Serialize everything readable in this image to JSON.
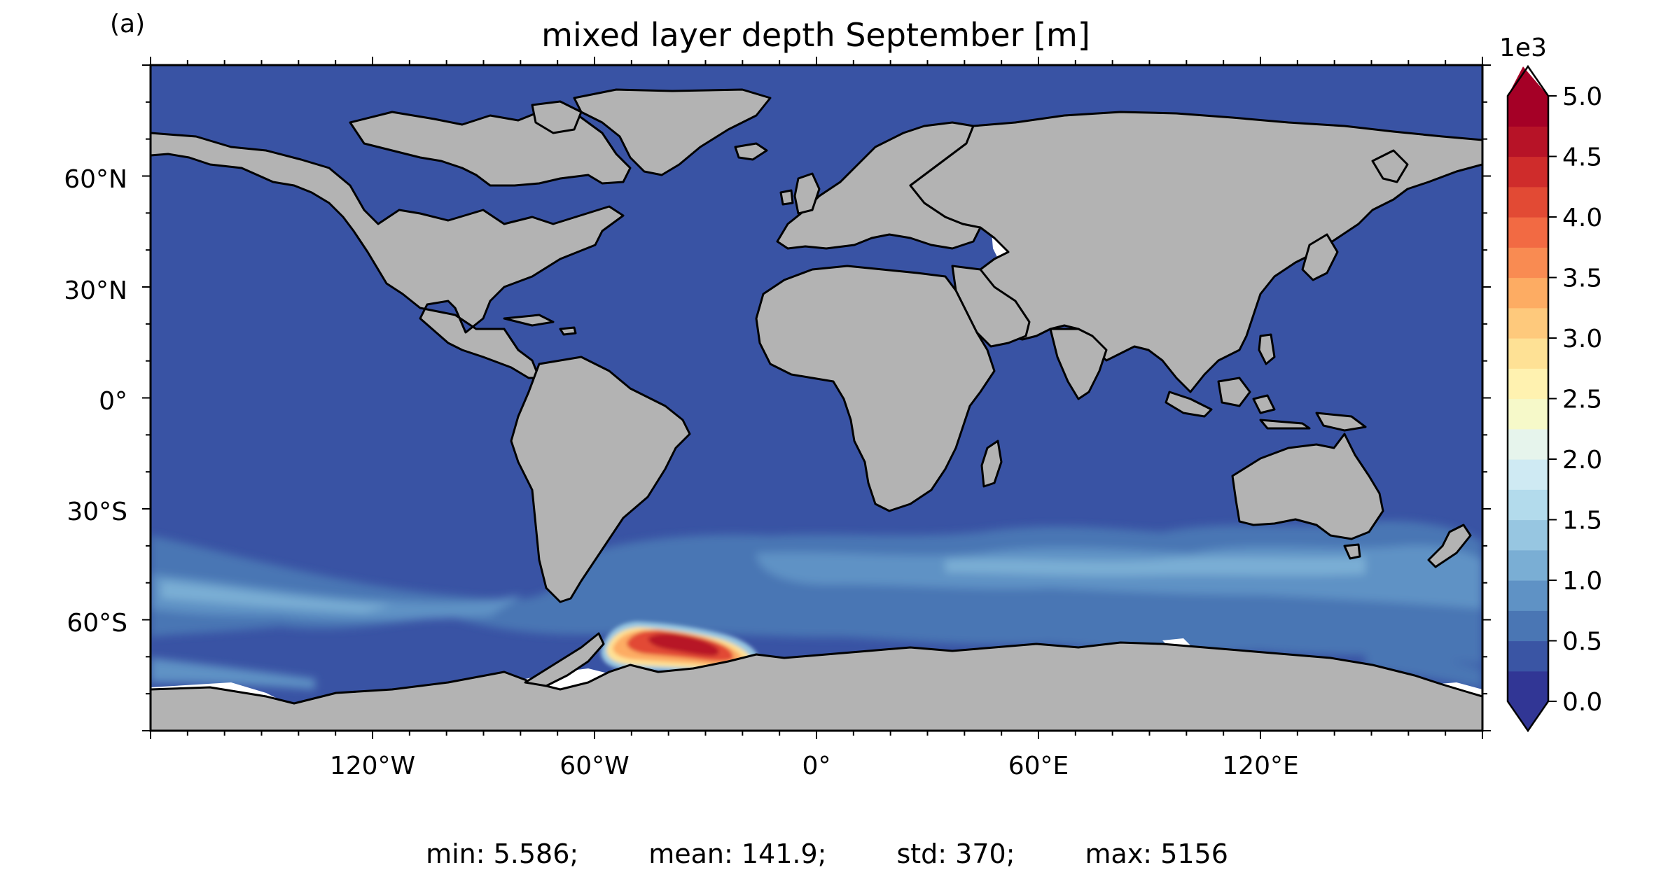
{
  "panel_label": "(a)",
  "title": "mixed layer depth September [m]",
  "lat_ticks": [
    "60°N",
    "30°N",
    "0°",
    "30°S",
    "60°S"
  ],
  "lon_ticks": [
    "120°W",
    "60°W",
    "0°",
    "60°E",
    "120°E"
  ],
  "colorbar": {
    "multiplier": "1e3",
    "tick_labels": [
      "0.0",
      "0.5",
      "1.0",
      "1.5",
      "2.0",
      "2.5",
      "3.0",
      "3.5",
      "4.0",
      "4.5",
      "5.0"
    ],
    "extend": "both",
    "colormap": "RdYlBu_r",
    "colors": [
      "#313695",
      "#3a55a4",
      "#4a76b4",
      "#5f92c5",
      "#7aaed4",
      "#97c6e1",
      "#b3dbec",
      "#cfeaf3",
      "#e6f4ec",
      "#f6f9c9",
      "#fff2b0",
      "#fee195",
      "#fec97c",
      "#fdac63",
      "#f98b52",
      "#f26a43",
      "#e24a34",
      "#cf2c2b",
      "#b71327",
      "#a50026"
    ],
    "under_color": "#313695",
    "over_color": "#a50026"
  },
  "map": {
    "ocean_color": "#3953a4",
    "land_color": "#b3b3b3",
    "coastline_color": "#000000",
    "projection": "PlateCarree",
    "lon_range": [
      -180,
      180
    ],
    "lat_range": [
      -90,
      90
    ]
  },
  "stats": {
    "min": "min: 5.586;",
    "mean": "mean: 141.9;",
    "std": "std: 370;",
    "max": "max: 5156"
  }
}
